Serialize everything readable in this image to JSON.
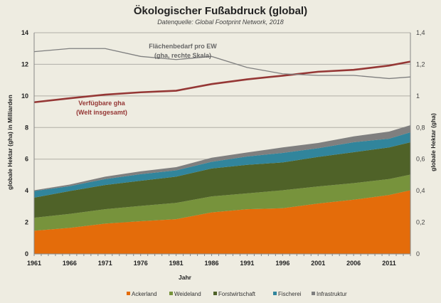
{
  "chart_data": {
    "type": "area",
    "title": "Ökologischer Fußabdruck (global)",
    "subtitle": "Datenquelle: Global Footprint Network, 2018",
    "xlabel": "Jahr",
    "ylabel": "globale Hektar (gha) in Milliarden",
    "ylabel_right": "globale Hektar (gha)",
    "xlim": [
      1961,
      2014
    ],
    "ylim": [
      0,
      14
    ],
    "ylim_right": [
      0,
      1.4
    ],
    "x_ticks": [
      "1961",
      "1966",
      "1971",
      "1976",
      "1981",
      "1986",
      "1991",
      "1996",
      "2001",
      "2006",
      "2011"
    ],
    "y_ticks": [
      "0",
      "2",
      "4",
      "6",
      "8",
      "10",
      "12",
      "14"
    ],
    "y_ticks_right": [
      "0",
      "0,2",
      "0,4",
      "0,6",
      "0,8",
      "1",
      "1,2",
      "1,4"
    ],
    "grid": true,
    "stacked": true,
    "legend_position": "bottom",
    "x": [
      1961,
      1966,
      1971,
      1976,
      1981,
      1986,
      1991,
      1996,
      2001,
      2006,
      2011,
      2014
    ],
    "series": [
      {
        "name": "Ackerland",
        "color": "#e46c0a",
        "values": [
          1.47,
          1.65,
          1.92,
          2.07,
          2.2,
          2.63,
          2.83,
          2.89,
          3.19,
          3.43,
          3.73,
          4.03
        ]
      },
      {
        "name": "Weideland",
        "color": "#77933c",
        "values": [
          0.82,
          0.88,
          0.91,
          0.97,
          1.03,
          1.01,
          1.0,
          1.14,
          1.08,
          1.05,
          1.01,
          0.99
        ]
      },
      {
        "name": "Forstwirtschaft",
        "color": "#4f6228",
        "values": [
          1.27,
          1.45,
          1.53,
          1.59,
          1.66,
          1.77,
          1.81,
          1.76,
          1.87,
          1.96,
          2.0,
          2.05
        ]
      },
      {
        "name": "Fischerei",
        "color": "#31859c",
        "values": [
          0.42,
          0.31,
          0.38,
          0.42,
          0.4,
          0.42,
          0.53,
          0.6,
          0.55,
          0.63,
          0.55,
          0.63
        ]
      },
      {
        "name": "Infrastruktur",
        "color": "#7f7f7f",
        "values": [
          0.05,
          0.1,
          0.15,
          0.18,
          0.2,
          0.26,
          0.25,
          0.35,
          0.33,
          0.37,
          0.45,
          0.45
        ]
      }
    ],
    "lines": [
      {
        "name": "Verfügbare gha",
        "name2": "(Welt insgesamt)",
        "axis": "left",
        "color": "#953735",
        "values": [
          9.6,
          9.85,
          10.08,
          10.23,
          10.33,
          10.75,
          11.05,
          11.28,
          11.53,
          11.65,
          11.92,
          12.17
        ]
      },
      {
        "name": "Flächenbedarf pro EW",
        "name2": "(gha, rechte Skala)",
        "axis": "right",
        "color": "#7f7f7f",
        "values": [
          1.28,
          1.3,
          1.3,
          1.25,
          1.23,
          1.25,
          1.18,
          1.14,
          1.13,
          1.13,
          1.11,
          1.12
        ]
      }
    ]
  }
}
